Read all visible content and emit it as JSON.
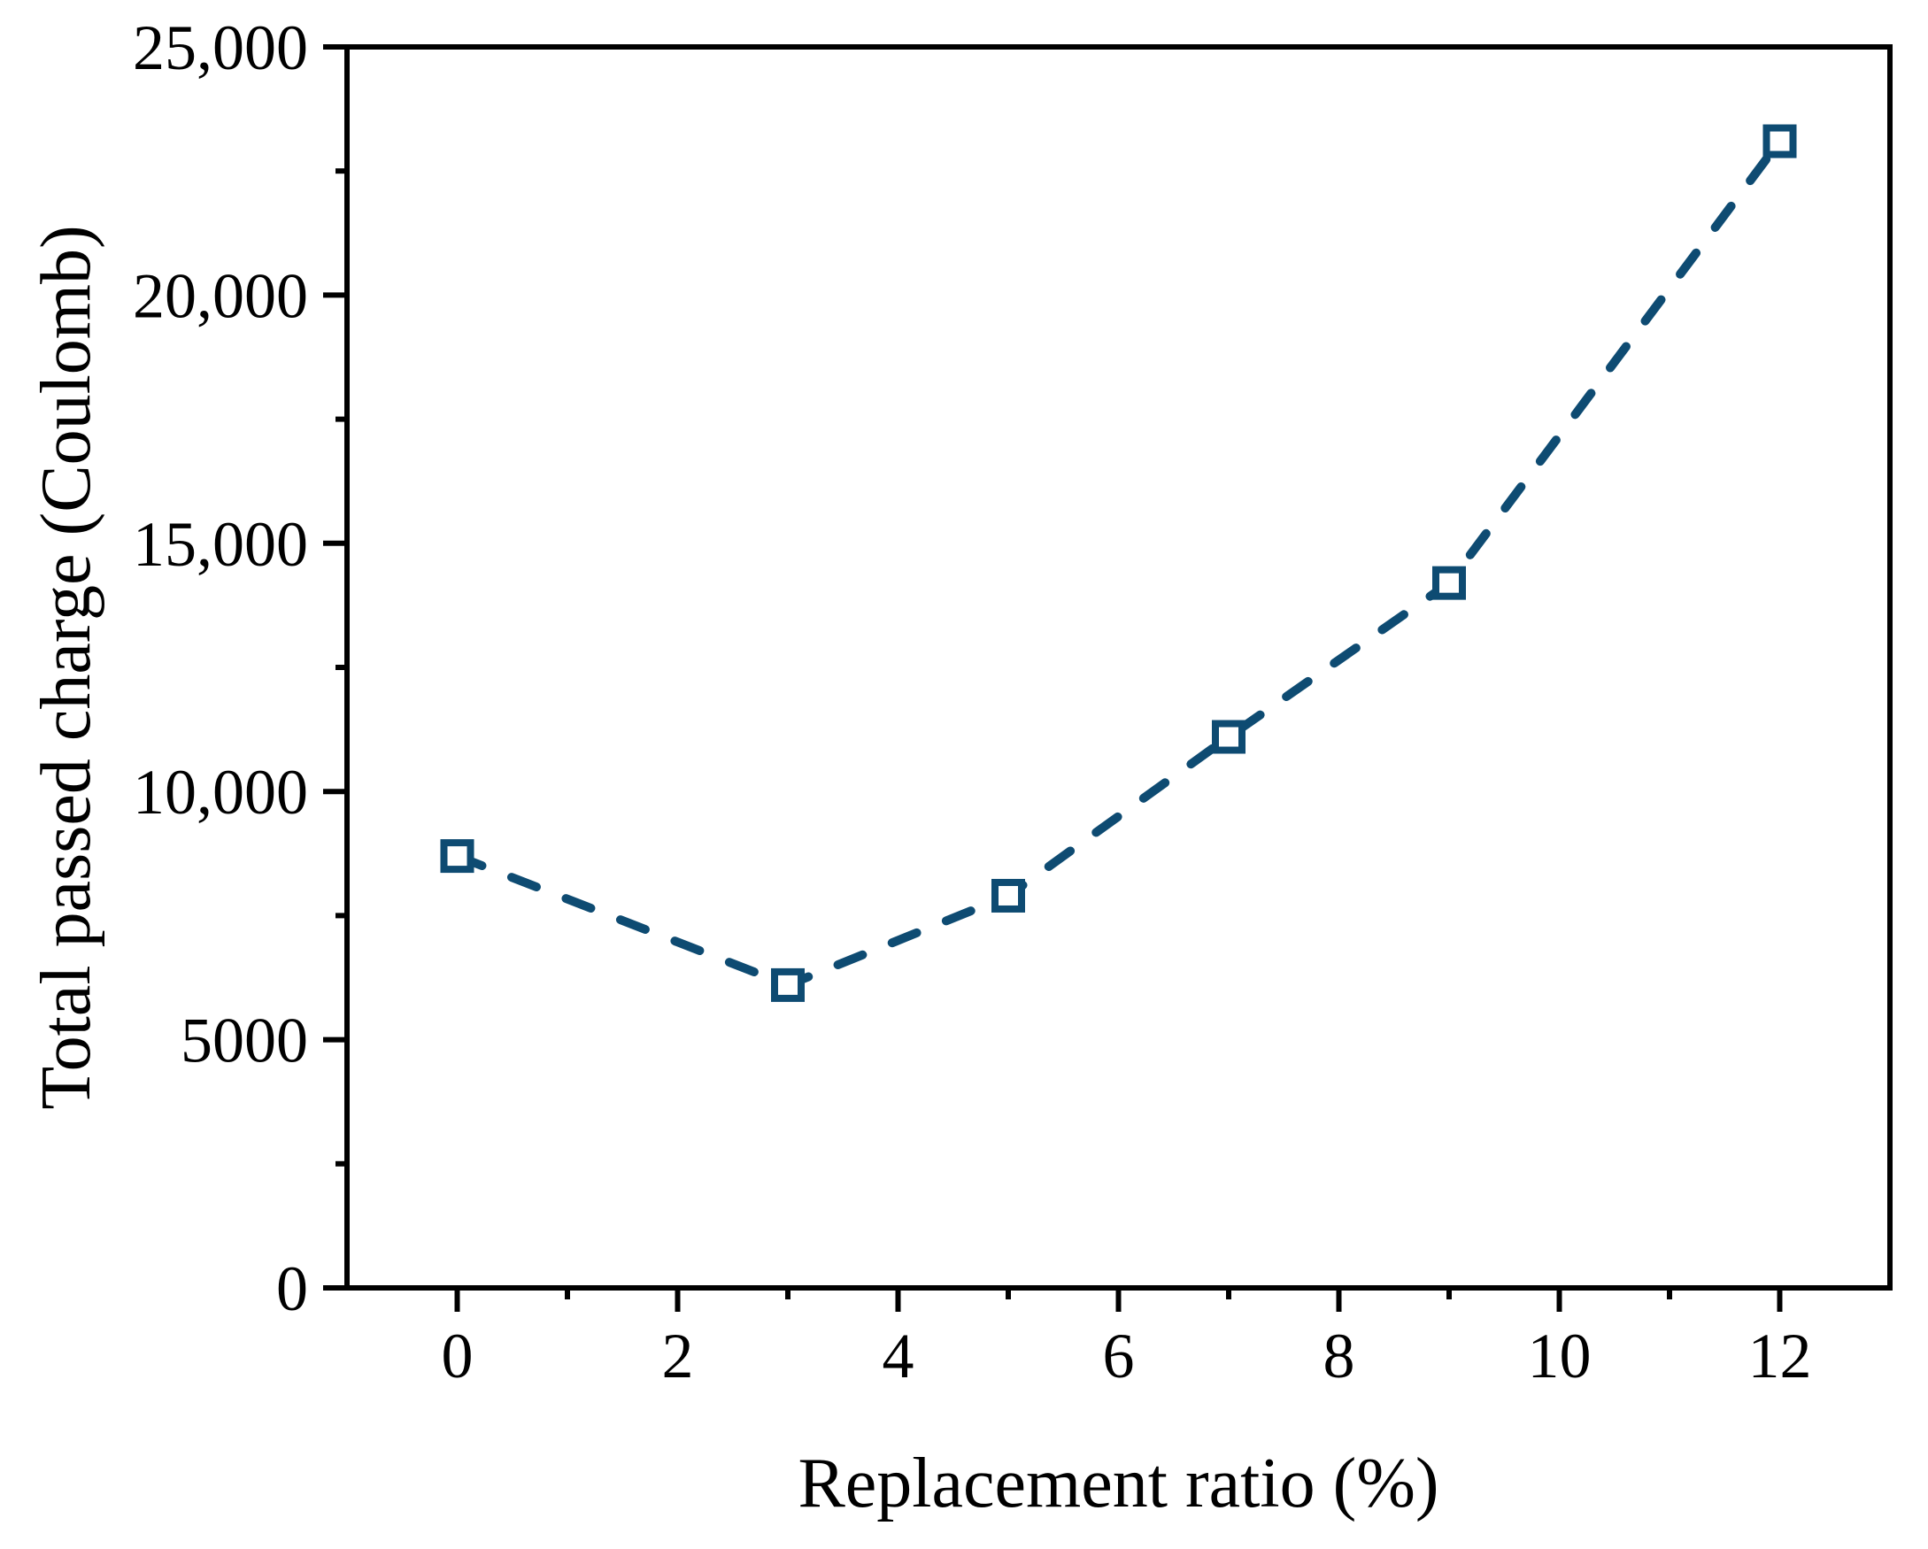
{
  "chart_data": {
    "type": "line",
    "title": "",
    "xlabel": "Replacement ratio (%)",
    "ylabel": "Total passed charge (Coulomb)",
    "x": [
      0,
      3,
      5,
      7,
      9,
      12
    ],
    "y": [
      8700,
      6100,
      7900,
      11100,
      14200,
      23100
    ],
    "xlim": [
      -1,
      13
    ],
    "ylim": [
      0,
      25000
    ],
    "x_major_ticks": [
      0,
      2,
      4,
      6,
      8,
      10,
      12
    ],
    "x_major_tick_labels": [
      "0",
      "2",
      "4",
      "6",
      "8",
      "10",
      "12"
    ],
    "x_minor_ticks": [
      1,
      3,
      5,
      7,
      9,
      11
    ],
    "y_major_ticks": [
      0,
      5000,
      10000,
      15000,
      20000,
      25000
    ],
    "y_major_tick_labels": [
      "0",
      "5000",
      "10,000",
      "15,000",
      "20,000",
      "25,000"
    ],
    "y_minor_ticks": [
      2500,
      7500,
      12500,
      17500,
      22500
    ],
    "grid": false,
    "legend": "none",
    "line_style": "dashed",
    "marker": "open-square",
    "colors": {
      "series": "#0e4b72",
      "marker_fill": "#ffffff",
      "axis": "#000000",
      "background": "#ffffff"
    }
  }
}
